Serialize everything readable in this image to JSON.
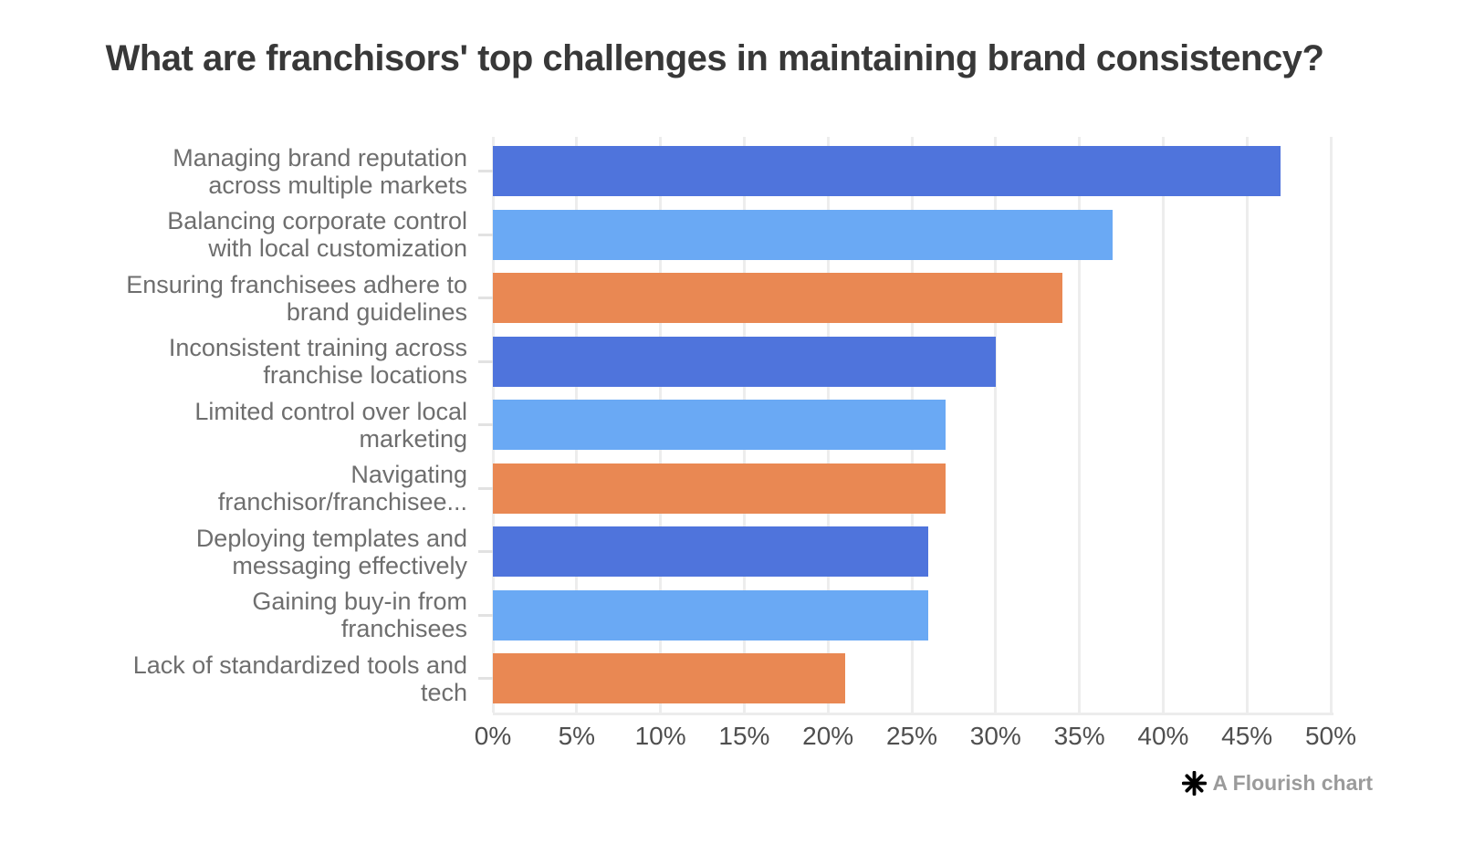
{
  "title": "What are franchisors' top challenges in maintaining brand consistency?",
  "footer": {
    "credit": "A Flourish chart"
  },
  "colors": {
    "title_text": "#383838",
    "category_label_text": "#6e6e6e",
    "axis_label_text": "#4f4f4f",
    "gridline": "#ededed",
    "credit_text": "#9b9b9b",
    "logo": "#000000"
  },
  "chart_data": {
    "type": "bar",
    "orientation": "horizontal",
    "title": "What are franchisors' top challenges in maintaining brand consistency?",
    "categories": [
      "Managing brand reputation across multiple markets",
      "Balancing corporate control with local customization",
      "Ensuring franchisees adhere to brand guidelines",
      "Inconsistent training across franchise locations",
      "Limited control over local marketing",
      "Navigating franchisor/franchisee...",
      "Deploying templates and messaging effectively",
      "Gaining buy-in from franchisees",
      "Lack of standardized tools and tech"
    ],
    "categories_wrapped": [
      [
        "Managing brand reputation",
        "across multiple markets"
      ],
      [
        "Balancing corporate control",
        "with local customization"
      ],
      [
        "Ensuring franchisees adhere to",
        "brand guidelines"
      ],
      [
        "Inconsistent training across",
        "franchise locations"
      ],
      [
        "Limited control over local",
        "marketing"
      ],
      [
        "Navigating",
        "franchisor/franchisee..."
      ],
      [
        "Deploying templates and",
        "messaging effectively"
      ],
      [
        "Gaining buy-in from",
        "franchisees"
      ],
      [
        "Lack of standardized tools and",
        "tech"
      ]
    ],
    "values": [
      47,
      37,
      34,
      30,
      27,
      27,
      26,
      26,
      21
    ],
    "value_suffix": "%",
    "bar_color_cycle": [
      "#4f74dc",
      "#6aa9f4",
      "#e98853"
    ],
    "xlabel": "",
    "ylabel": "",
    "xlim": [
      0,
      50
    ],
    "x_tick_values": [
      0,
      5,
      10,
      15,
      20,
      25,
      30,
      35,
      40,
      45,
      50
    ],
    "x_tick_labels": [
      "0%",
      "5%",
      "10%",
      "15%",
      "20%",
      "25%",
      "30%",
      "35%",
      "40%",
      "45%",
      "50%"
    ],
    "grid": true,
    "legend": "none"
  }
}
